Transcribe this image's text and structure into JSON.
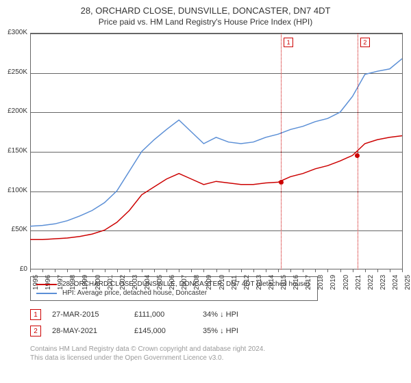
{
  "title": "28, ORCHARD CLOSE, DUNSVILLE, DONCASTER, DN7 4DT",
  "subtitle": "Price paid vs. HM Land Registry's House Price Index (HPI)",
  "chart": {
    "type": "line",
    "background_color": "#ffffff",
    "grid_color": "#666666",
    "ylim": [
      0,
      300000
    ],
    "ytick_step": 50000,
    "ylabels": [
      "£0",
      "£50K",
      "£100K",
      "£150K",
      "£200K",
      "£250K",
      "£300K"
    ],
    "xlim": [
      1995,
      2025
    ],
    "xlabels": [
      "1995",
      "1996",
      "1997",
      "1998",
      "1999",
      "2000",
      "2001",
      "2002",
      "2003",
      "2004",
      "2005",
      "2006",
      "2007",
      "2008",
      "2009",
      "2010",
      "2011",
      "2012",
      "2013",
      "2014",
      "2015",
      "2016",
      "2017",
      "2018",
      "2019",
      "2020",
      "2021",
      "2022",
      "2023",
      "2024",
      "2025"
    ],
    "line_width": 1.5,
    "label_fontsize": 10,
    "series": [
      {
        "name": "property",
        "color": "#cc0000",
        "values": [
          [
            1995,
            38000
          ],
          [
            1996,
            38000
          ],
          [
            1997,
            39000
          ],
          [
            1998,
            40000
          ],
          [
            1999,
            42000
          ],
          [
            2000,
            45000
          ],
          [
            2001,
            50000
          ],
          [
            2002,
            60000
          ],
          [
            2003,
            75000
          ],
          [
            2004,
            95000
          ],
          [
            2005,
            105000
          ],
          [
            2006,
            115000
          ],
          [
            2007,
            122000
          ],
          [
            2008,
            115000
          ],
          [
            2009,
            108000
          ],
          [
            2010,
            112000
          ],
          [
            2011,
            110000
          ],
          [
            2012,
            108000
          ],
          [
            2013,
            108000
          ],
          [
            2014,
            110000
          ],
          [
            2015,
            111000
          ],
          [
            2016,
            118000
          ],
          [
            2017,
            122000
          ],
          [
            2018,
            128000
          ],
          [
            2019,
            132000
          ],
          [
            2020,
            138000
          ],
          [
            2021,
            145000
          ],
          [
            2022,
            160000
          ],
          [
            2023,
            165000
          ],
          [
            2024,
            168000
          ],
          [
            2025,
            170000
          ]
        ]
      },
      {
        "name": "hpi",
        "color": "#5b8fd6",
        "values": [
          [
            1995,
            55000
          ],
          [
            1996,
            56000
          ],
          [
            1997,
            58000
          ],
          [
            1998,
            62000
          ],
          [
            1999,
            68000
          ],
          [
            2000,
            75000
          ],
          [
            2001,
            85000
          ],
          [
            2002,
            100000
          ],
          [
            2003,
            125000
          ],
          [
            2004,
            150000
          ],
          [
            2005,
            165000
          ],
          [
            2006,
            178000
          ],
          [
            2007,
            190000
          ],
          [
            2008,
            175000
          ],
          [
            2009,
            160000
          ],
          [
            2010,
            168000
          ],
          [
            2011,
            162000
          ],
          [
            2012,
            160000
          ],
          [
            2013,
            162000
          ],
          [
            2014,
            168000
          ],
          [
            2015,
            172000
          ],
          [
            2016,
            178000
          ],
          [
            2017,
            182000
          ],
          [
            2018,
            188000
          ],
          [
            2019,
            192000
          ],
          [
            2020,
            200000
          ],
          [
            2021,
            220000
          ],
          [
            2022,
            248000
          ],
          [
            2023,
            252000
          ],
          [
            2024,
            255000
          ],
          [
            2025,
            268000
          ]
        ]
      }
    ],
    "markers": [
      {
        "num": "1",
        "year": 2015.23,
        "value": 111000
      },
      {
        "num": "2",
        "year": 2021.4,
        "value": 145000
      }
    ]
  },
  "legend": {
    "items": [
      {
        "color": "#cc0000",
        "label": "28, ORCHARD CLOSE, DUNSVILLE, DONCASTER, DN7 4DT (detached house)"
      },
      {
        "color": "#5b8fd6",
        "label": "HPI: Average price, detached house, Doncaster"
      }
    ]
  },
  "marker_table": [
    {
      "num": "1",
      "date": "27-MAR-2015",
      "price": "£111,000",
      "delta": "34% ↓ HPI"
    },
    {
      "num": "2",
      "date": "28-MAY-2021",
      "price": "£145,000",
      "delta": "35% ↓ HPI"
    }
  ],
  "footer": {
    "line1": "Contains HM Land Registry data © Crown copyright and database right 2024.",
    "line2": "This data is licensed under the Open Government Licence v3.0."
  }
}
